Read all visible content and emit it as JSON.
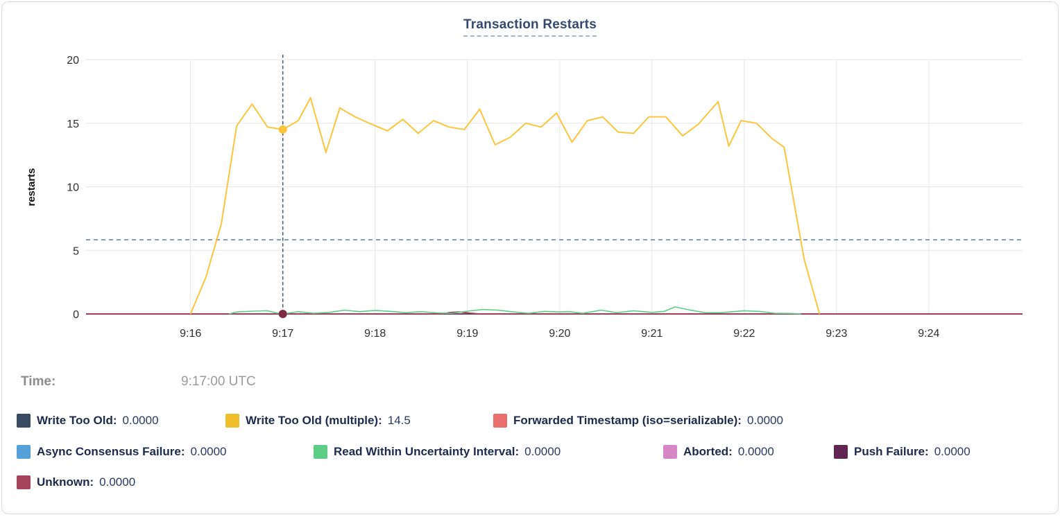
{
  "chart_data": {
    "type": "line",
    "title": "Transaction Restarts",
    "ylabel": "restarts",
    "ylim": [
      0,
      20
    ],
    "yticks": [
      0,
      5,
      10,
      15,
      20
    ],
    "x_domain_seconds": [
      -68,
      541
    ],
    "xticks": [
      {
        "label": "9:16",
        "t": 0
      },
      {
        "label": "9:17",
        "t": 60
      },
      {
        "label": "9:18",
        "t": 120
      },
      {
        "label": "9:19",
        "t": 180
      },
      {
        "label": "9:20",
        "t": 240
      },
      {
        "label": "9:21",
        "t": 300
      },
      {
        "label": "9:22",
        "t": 360
      },
      {
        "label": "9:23",
        "t": 420
      },
      {
        "label": "9:24",
        "t": 480
      }
    ],
    "grid": true,
    "average_line_value": 5.83,
    "hover": {
      "t": 60,
      "time": "9:17:00 UTC",
      "points": [
        {
          "series": "Write Too Old (multiple)",
          "value": 14.5,
          "dot_color": "#fdc53d"
        },
        {
          "series": "Unknown",
          "value": 0,
          "dot_color": "#7c2c44"
        }
      ]
    },
    "series": [
      {
        "name": "Write Too Old",
        "color": "#3a4a63",
        "width": 1.5,
        "points": [
          [
            -68,
            0
          ],
          [
            541,
            0
          ]
        ]
      },
      {
        "name": "Forwarded Timestamp (iso=serializable)",
        "color": "#ea6e6e",
        "width": 1.5,
        "points": [
          [
            -68,
            0
          ],
          [
            541,
            0
          ]
        ]
      },
      {
        "name": "Async Consensus Failure",
        "color": "#57a1db",
        "width": 1.5,
        "points": [
          [
            -68,
            0
          ],
          [
            541,
            0
          ]
        ]
      },
      {
        "name": "Aborted",
        "color": "#d687c6",
        "width": 1.5,
        "points": [
          [
            -68,
            0
          ],
          [
            541,
            0
          ]
        ]
      },
      {
        "name": "Push Failure",
        "color": "#61264f",
        "width": 1.5,
        "points": [
          [
            -68,
            0
          ],
          [
            541,
            0
          ]
        ]
      },
      {
        "name": "Unknown",
        "color": "#9e3a52",
        "width": 1.8,
        "points": [
          [
            -68,
            0
          ],
          [
            163,
            0
          ],
          [
            169,
            0.12
          ],
          [
            175,
            0.16
          ],
          [
            182,
            0.06
          ],
          [
            188,
            0
          ],
          [
            541,
            0
          ]
        ]
      },
      {
        "name": "Read Within Uncertainty Interval",
        "color": "#5dcd86",
        "width": 1.6,
        "points": [
          [
            25,
            0
          ],
          [
            30,
            0.15
          ],
          [
            40,
            0.22
          ],
          [
            50,
            0.25
          ],
          [
            55,
            0.1
          ],
          [
            60,
            0
          ],
          [
            70,
            0.18
          ],
          [
            80,
            0.05
          ],
          [
            90,
            0.12
          ],
          [
            100,
            0.3
          ],
          [
            110,
            0.18
          ],
          [
            120,
            0.28
          ],
          [
            130,
            0.2
          ],
          [
            140,
            0.1
          ],
          [
            150,
            0.18
          ],
          [
            160,
            0.08
          ],
          [
            170,
            0.05
          ],
          [
            180,
            0.22
          ],
          [
            190,
            0.35
          ],
          [
            200,
            0.3
          ],
          [
            210,
            0.15
          ],
          [
            220,
            0.05
          ],
          [
            230,
            0.2
          ],
          [
            240,
            0.15
          ],
          [
            246,
            0.18
          ],
          [
            255,
            0.05
          ],
          [
            267,
            0.3
          ],
          [
            277,
            0.1
          ],
          [
            288,
            0.25
          ],
          [
            300,
            0.12
          ],
          [
            308,
            0.2
          ],
          [
            315,
            0.55
          ],
          [
            325,
            0.3
          ],
          [
            335,
            0.1
          ],
          [
            345,
            0.1
          ],
          [
            355,
            0.2
          ],
          [
            360,
            0.25
          ],
          [
            370,
            0.2
          ],
          [
            380,
            0.05
          ],
          [
            390,
            0.04
          ],
          [
            397,
            0
          ]
        ]
      },
      {
        "name": "Write Too Old (multiple)",
        "color": "#fcc63c",
        "width": 2,
        "points": [
          [
            0,
            0
          ],
          [
            10,
            2.9
          ],
          [
            20,
            7.1
          ],
          [
            30,
            14.8
          ],
          [
            40,
            16.5
          ],
          [
            50,
            14.7
          ],
          [
            60,
            14.5
          ],
          [
            70,
            15.2
          ],
          [
            78,
            17.0
          ],
          [
            88,
            12.7
          ],
          [
            97,
            16.2
          ],
          [
            107,
            15.5
          ],
          [
            118,
            14.9
          ],
          [
            128,
            14.4
          ],
          [
            138,
            15.3
          ],
          [
            148,
            14.2
          ],
          [
            158,
            15.2
          ],
          [
            168,
            14.7
          ],
          [
            178,
            14.5
          ],
          [
            188,
            16.1
          ],
          [
            198,
            13.3
          ],
          [
            208,
            13.9
          ],
          [
            218,
            15.0
          ],
          [
            228,
            14.7
          ],
          [
            238,
            15.8
          ],
          [
            248,
            13.5
          ],
          [
            258,
            15.2
          ],
          [
            268,
            15.5
          ],
          [
            278,
            14.3
          ],
          [
            288,
            14.2
          ],
          [
            298,
            15.5
          ],
          [
            309,
            15.5
          ],
          [
            320,
            14.0
          ],
          [
            330,
            14.9
          ],
          [
            343,
            16.7
          ],
          [
            350,
            13.2
          ],
          [
            358,
            15.2
          ],
          [
            368,
            15.0
          ],
          [
            378,
            13.8
          ],
          [
            386,
            13.1
          ],
          [
            399,
            4.3
          ],
          [
            409,
            0
          ]
        ]
      }
    ]
  },
  "tooltip": {
    "time_label": "Time:",
    "time_value": "9:17:00 UTC"
  },
  "legend": {
    "rows": [
      [
        {
          "label": "Write Too Old:",
          "value": "0.0000",
          "color": "#3a4a63"
        },
        {
          "label": "Write Too Old (multiple):",
          "value": "14.5",
          "color": "#f0be2b"
        },
        {
          "label": "Forwarded Timestamp (iso=serializable):",
          "value": "0.0000",
          "color": "#ea6e6e"
        }
      ],
      [
        {
          "label": "Async Consensus Failure:",
          "value": "0.0000",
          "color": "#57a1db"
        },
        {
          "label": "Read Within Uncertainty Interval:",
          "value": "0.0000",
          "color": "#5dcd86"
        },
        {
          "label": "Aborted:",
          "value": "0.0000",
          "color": "#d687c6"
        },
        {
          "label": "Push Failure:",
          "value": "0.0000",
          "color": "#61264f"
        }
      ],
      [
        {
          "label": "Unknown:",
          "value": "0.0000",
          "color": "#a6455c"
        }
      ]
    ]
  }
}
